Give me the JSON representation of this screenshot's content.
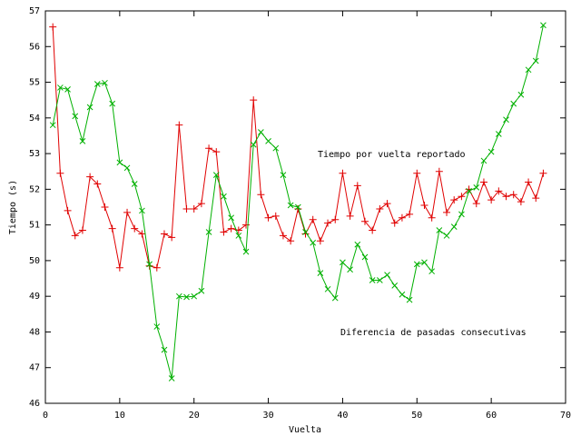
{
  "chart_data": {
    "type": "line",
    "x_label": "Vuelta",
    "y_label": "Tiempo (s)",
    "x": [
      1,
      2,
      3,
      4,
      5,
      6,
      7,
      8,
      9,
      10,
      11,
      12,
      13,
      14,
      15,
      16,
      17,
      18,
      19,
      20,
      21,
      22,
      23,
      24,
      25,
      26,
      27,
      28,
      29,
      30,
      31,
      32,
      33,
      34,
      35,
      36,
      37,
      38,
      39,
      40,
      41,
      42,
      43,
      44,
      45,
      46,
      47,
      48,
      49,
      50,
      51,
      52,
      53,
      54,
      55,
      56,
      57,
      58,
      59,
      60,
      61,
      62,
      63,
      64,
      65,
      66,
      67
    ],
    "series": [
      {
        "name": "Tiempo por vuelta reportado",
        "color": "#e00000",
        "marker": "+",
        "values": [
          56.55,
          52.45,
          51.4,
          50.7,
          50.85,
          52.35,
          52.15,
          51.5,
          50.9,
          49.8,
          51.35,
          50.9,
          50.75,
          49.85,
          49.8,
          50.75,
          50.65,
          53.8,
          51.45,
          51.45,
          51.6,
          53.15,
          53.05,
          50.8,
          50.9,
          50.85,
          51.0,
          54.5,
          51.85,
          51.2,
          51.25,
          50.7,
          50.55,
          51.45,
          50.75,
          51.15,
          50.55,
          51.05,
          51.15,
          52.45,
          51.25,
          52.1,
          51.1,
          50.85,
          51.45,
          51.6,
          51.05,
          51.2,
          51.3,
          52.45,
          51.55,
          51.2,
          52.5,
          51.35,
          51.7,
          51.8,
          52.0,
          51.6,
          52.2,
          51.7,
          51.95,
          51.8,
          51.85,
          51.65,
          52.2,
          51.75,
          52.45
        ]
      },
      {
        "name": "Diferencia de pasadas consecutivas",
        "color": "#00b000",
        "marker": "x",
        "values": [
          53.8,
          54.85,
          54.8,
          54.05,
          53.35,
          54.3,
          54.95,
          54.98,
          54.4,
          52.75,
          52.6,
          52.15,
          51.4,
          49.9,
          48.15,
          47.5,
          46.7,
          49.0,
          48.98,
          49.0,
          49.15,
          50.8,
          52.4,
          51.8,
          51.2,
          50.7,
          50.25,
          53.25,
          53.6,
          53.35,
          53.15,
          52.4,
          51.55,
          51.5,
          50.8,
          50.5,
          49.65,
          49.2,
          48.95,
          49.95,
          49.75,
          50.45,
          50.1,
          49.45,
          49.45,
          49.6,
          49.3,
          49.05,
          48.9,
          49.9,
          49.95,
          49.7,
          50.85,
          50.7,
          50.95,
          51.3,
          51.95,
          52.05,
          52.8,
          53.05,
          53.55,
          53.95,
          54.4,
          54.65,
          55.35,
          55.6,
          56.6
        ]
      }
    ],
    "xlim": [
      0,
      70
    ],
    "xticks": [
      0,
      10,
      20,
      30,
      40,
      50,
      60,
      70
    ],
    "ylim": [
      46,
      57
    ],
    "yticks": [
      46,
      47,
      48,
      49,
      50,
      51,
      52,
      53,
      54,
      55,
      56,
      57
    ]
  }
}
